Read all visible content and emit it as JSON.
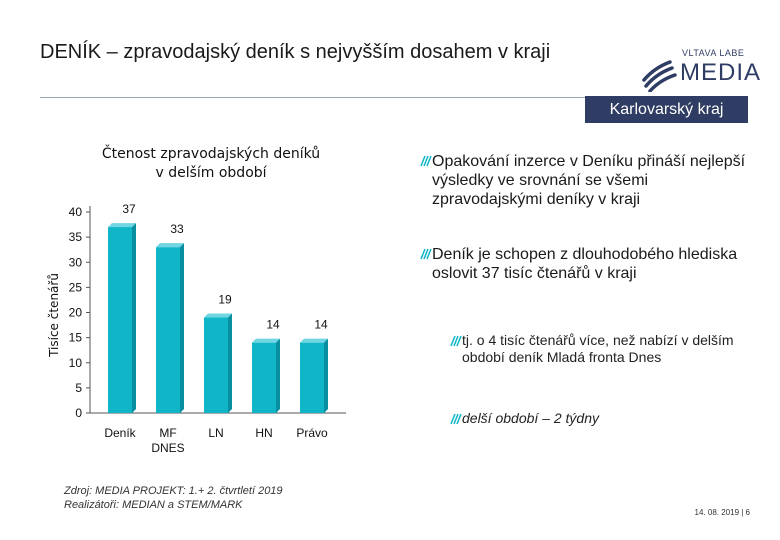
{
  "title": "DENÍK – zpravodajský deník s nejvyšším dosahem v kraji",
  "logo": {
    "top": "VLTAVA LABE",
    "main": "MEDIA"
  },
  "region": "Karlovarský kraj",
  "bullets": [
    "Opakování inzerce v Deníku přináší nejlepší výsledky ve srovnání se všemi zpravodajskými deníky v kraji",
    "Deník je schopen z dlouhodobého hlediska oslovit 37 tisíc čtenářů v kraji"
  ],
  "sub_bullets": [
    "tj. o 4 tisíc čtenářů více, než nabízí v delším období deník Mladá fronta Dnes",
    "delší období – 2 týdny"
  ],
  "source": [
    "Zdroj: MEDIA PROJEKT: 1.+ 2. čtvrtletí 2019",
    "Realizátoři: MEDIAN a STEM/MARK"
  ],
  "footer": "14. 08. 2019 | 6",
  "colors": {
    "bar": "#10b6c8",
    "bar_side": "#0a8fa0",
    "bar_top": "#6fd6e2",
    "brand": "#2f3c63"
  },
  "chart_data": {
    "type": "bar",
    "title": [
      "Čtenost zpravodajských deníků",
      "v delším období"
    ],
    "ylabel": "Tisíce čtenářů",
    "categories": [
      "Deník",
      "MF DNES",
      "LN",
      "HN",
      "Právo"
    ],
    "category_lines": [
      [
        "Deník"
      ],
      [
        "MF",
        "DNES"
      ],
      [
        "LN"
      ],
      [
        "HN"
      ],
      [
        "Právo"
      ]
    ],
    "values": [
      37,
      33,
      19,
      14,
      14
    ],
    "ylim": [
      0,
      40
    ],
    "yticks": [
      0,
      5,
      10,
      15,
      20,
      25,
      30,
      35,
      40
    ]
  }
}
